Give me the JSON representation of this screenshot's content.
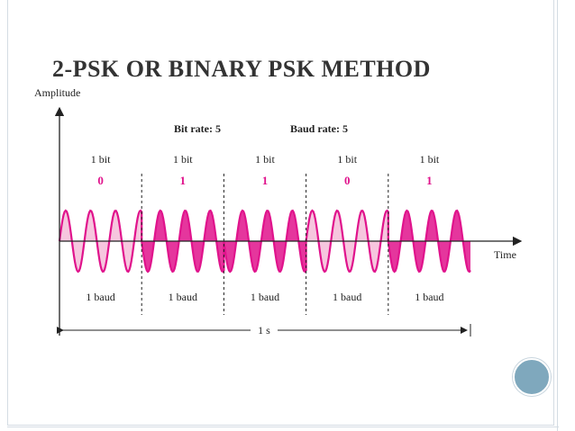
{
  "slide": {
    "title": "2-PSK OR BINARY PSK METHOD"
  },
  "diagram": {
    "y_axis_label": "Amplitude",
    "x_axis_label": "Time",
    "bit_rate_label": "Bit rate: 5",
    "baud_rate_label": "Baud rate: 5",
    "duration_label": "1 s",
    "bit_label": "1 bit",
    "baud_label": "1 baud",
    "bits": [
      "0",
      "1",
      "1",
      "0",
      "1"
    ],
    "cycles_per_bit": 3.3,
    "colors": {
      "signal": "#e0138c",
      "fill_light": "#f6c6de",
      "fill_dark": "#e0138c",
      "bit_value": "#e0138c"
    }
  }
}
